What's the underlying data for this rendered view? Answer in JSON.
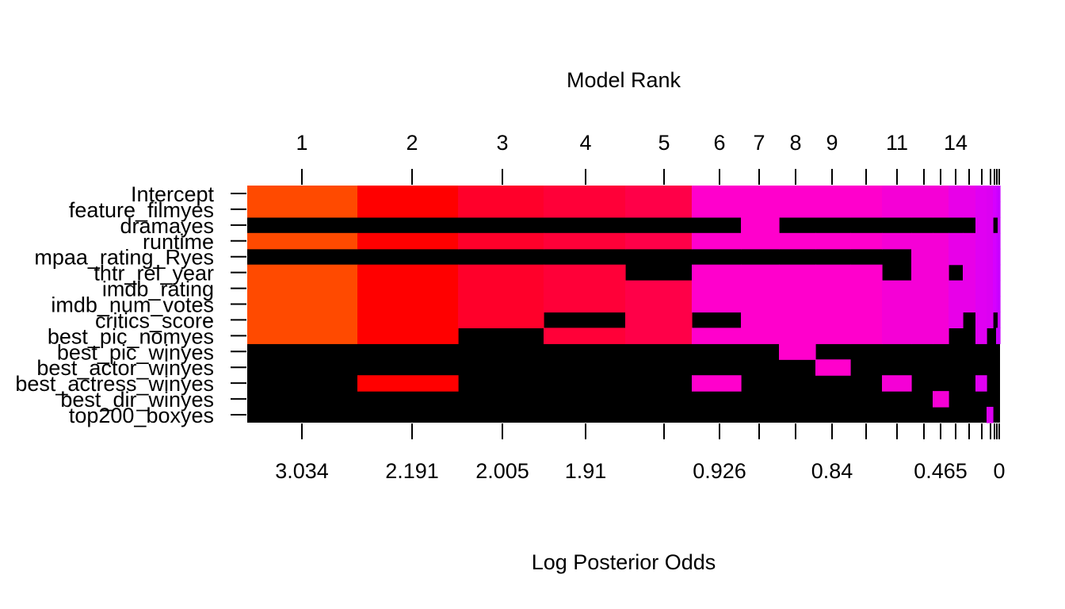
{
  "chart_data": {
    "type": "heatmap",
    "title": "",
    "top_axis_label": "Model Rank",
    "xlabel": "Log Posterior Odds",
    "ylabel": "",
    "variables": [
      "Intercept",
      "feature_filmyes",
      "dramayes",
      "runtime",
      "mpaa_rating_Ryes",
      "thtr_rel_year",
      "imdb_rating",
      "imdb_num_votes",
      "critics_score",
      "best_pic_nomyes",
      "best_pic_winyes",
      "best_actor_winyes",
      "best_actress_winyes",
      "best_dir_winyes",
      "top200_boxyes"
    ],
    "models": [
      {
        "rank": 1,
        "log_posterior_odds": 3.034,
        "color": "#FF4A00",
        "included": [
          0,
          1,
          3,
          5,
          6,
          7,
          8,
          9
        ]
      },
      {
        "rank": 2,
        "log_posterior_odds": 2.191,
        "color": "#FF0000",
        "included": [
          0,
          1,
          3,
          5,
          6,
          7,
          8,
          9,
          12
        ]
      },
      {
        "rank": 3,
        "log_posterior_odds": 2.005,
        "color": "#FF002A",
        "included": [
          0,
          1,
          3,
          5,
          6,
          7,
          8
        ]
      },
      {
        "rank": 4,
        "log_posterior_odds": 1.91,
        "color": "#FF0038",
        "included": [
          0,
          1,
          3,
          5,
          6,
          7,
          9
        ]
      },
      {
        "rank": 5,
        "log_posterior_odds": null,
        "color": "#FF0048",
        "included": [
          0,
          1,
          3,
          6,
          7,
          8,
          9
        ]
      },
      {
        "rank": 6,
        "log_posterior_odds": 0.926,
        "color": "#FF00CC",
        "included": [
          0,
          1,
          3,
          5,
          6,
          7,
          9,
          12
        ]
      },
      {
        "rank": 7,
        "log_posterior_odds": null,
        "color": "#FF00CC",
        "included": [
          0,
          1,
          2,
          3,
          5,
          6,
          7,
          8,
          9
        ]
      },
      {
        "rank": 8,
        "log_posterior_odds": null,
        "color": "#FF00CC",
        "included": [
          0,
          1,
          3,
          5,
          6,
          7,
          8,
          9,
          10
        ]
      },
      {
        "rank": 9,
        "log_posterior_odds": 0.84,
        "color": "#FF00CC",
        "included": [
          0,
          1,
          3,
          5,
          6,
          7,
          8,
          9,
          11
        ]
      },
      {
        "rank": 10,
        "log_posterior_odds": null,
        "color": "#FF00CC",
        "included": [
          0,
          1,
          3,
          5,
          6,
          7,
          8,
          9
        ]
      },
      {
        "rank": 11,
        "log_posterior_odds": null,
        "color": "#F500D6",
        "included": [
          0,
          1,
          3,
          6,
          7,
          8,
          9,
          12
        ]
      },
      {
        "rank": 12,
        "log_posterior_odds": null,
        "color": "#F500D6",
        "included": [
          0,
          1,
          3,
          4,
          5,
          6,
          7,
          8,
          9
        ]
      },
      {
        "rank": 13,
        "log_posterior_odds": 0.465,
        "color": "#F500D6",
        "included": [
          0,
          1,
          3,
          4,
          5,
          6,
          7,
          8,
          9,
          13
        ]
      },
      {
        "rank": 14,
        "log_posterior_odds": null,
        "color": "#E800E8",
        "included": [
          0,
          1,
          3,
          4,
          6,
          7,
          8
        ]
      },
      {
        "rank": 15,
        "log_posterior_odds": null,
        "color": "#E800E8",
        "included": [
          0,
          1,
          3,
          4,
          5,
          6,
          7
        ]
      },
      {
        "rank": 16,
        "log_posterior_odds": null,
        "color": "#E000F2",
        "included": [
          0,
          1,
          2,
          3,
          4,
          5,
          6,
          7,
          8,
          9,
          12
        ]
      },
      {
        "rank": 17,
        "log_posterior_odds": null,
        "color": "#DC00F2",
        "included": [
          0,
          1,
          2,
          3,
          4,
          5,
          6,
          7,
          8,
          14
        ]
      },
      {
        "rank": 18,
        "log_posterior_odds": null,
        "color": "#D600FF",
        "included": [
          0,
          1,
          3,
          4,
          5,
          6,
          7
        ]
      },
      {
        "rank": 19,
        "log_posterior_odds": null,
        "color": "#CF00FF",
        "included": [
          0,
          1,
          3,
          4,
          5,
          6,
          7,
          9
        ]
      },
      {
        "rank": 20,
        "log_posterior_odds": 0,
        "color": "#C800FF",
        "included": [
          0,
          1,
          2,
          3,
          4,
          5,
          6,
          7,
          8,
          9
        ]
      }
    ],
    "top_tick_labels": [
      "1",
      "2",
      "3",
      "4",
      "5",
      "6",
      "7",
      "8",
      "9",
      "11",
      "14"
    ],
    "bottom_tick_labels": [
      "3.034",
      "2.191",
      "2.005",
      "1.91",
      "0.926",
      "0.84",
      "0.465",
      "0"
    ],
    "excluded_color": "#000000",
    "axis_range_log_odds": [
      3.034,
      0
    ]
  }
}
